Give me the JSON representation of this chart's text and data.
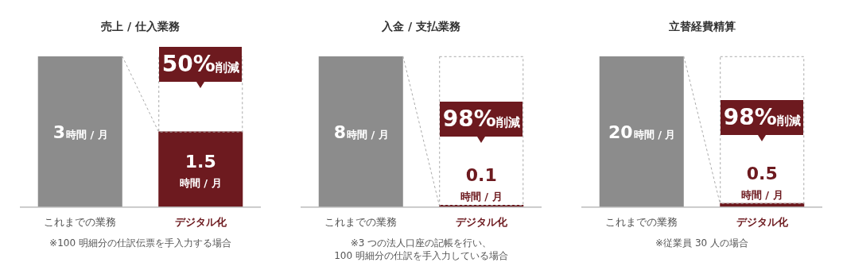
{
  "chart_data": [
    {
      "type": "bar",
      "title": "売上 / 仕入業務",
      "categories": [
        "これまでの業務",
        "デジタル化"
      ],
      "values": [
        3,
        1.5
      ],
      "colors": [
        "#8c8c8c",
        "#6d1a1f"
      ],
      "value_labels": [
        "3時間 / 月",
        "1.5時間 / 月"
      ],
      "annotations": [
        "50%削減",
        "※100 明細分の仕訳伝票を手入力する場合"
      ]
    },
    {
      "type": "bar",
      "title": "入金 / 支払業務",
      "categories": [
        "これまでの業務",
        "デジタル化"
      ],
      "values": [
        8,
        0.1
      ],
      "colors": [
        "#8c8c8c",
        "#6d1a1f"
      ],
      "value_labels": [
        "8時間 / 月",
        "0.1時間 / 月"
      ],
      "annotations": [
        "98%削減",
        "※3 つの法人口座の記帳を行い、\n100 明細分の仕訳を手入力している場合"
      ]
    },
    {
      "type": "bar",
      "title": "立替経費精算",
      "categories": [
        "これまでの業務",
        "デジタル化"
      ],
      "values": [
        20,
        0.5
      ],
      "colors": [
        "#8c8c8c",
        "#6d1a1f"
      ],
      "value_labels": [
        "20時間 / 月",
        "0.5時間 / 月"
      ],
      "annotations": [
        "98%削減",
        "※従業員 30 人の場合"
      ]
    }
  ]
}
